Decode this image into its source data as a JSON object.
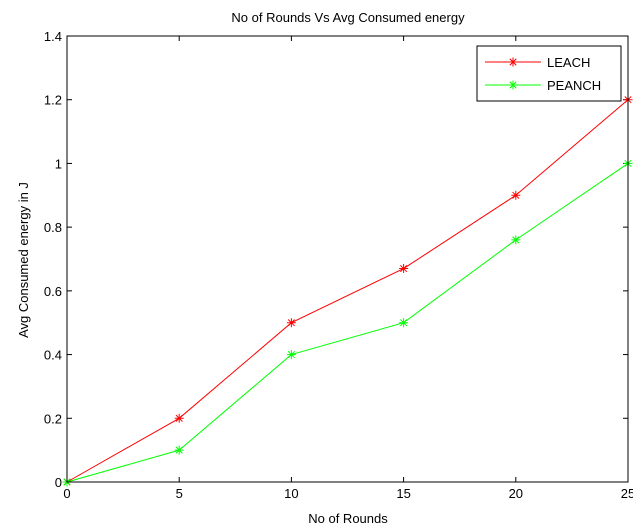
{
  "chart_data": {
    "type": "line",
    "title": "No of Rounds  Vs Avg Consumed energy",
    "xlabel": "No of Rounds",
    "ylabel": "Avg Consumed energy in J",
    "x": [
      0,
      5,
      10,
      15,
      20,
      25
    ],
    "xlim": [
      0,
      25
    ],
    "ylim": [
      0,
      1.4
    ],
    "xticks": [
      0,
      5,
      10,
      15,
      20,
      25
    ],
    "xtick_labels": [
      "0",
      "5",
      "10",
      "15",
      "20",
      "25"
    ],
    "yticks": [
      0,
      0.2,
      0.4,
      0.6,
      0.8,
      1,
      1.2,
      1.4
    ],
    "ytick_labels": [
      "0",
      "0.2",
      "0.4",
      "0.6",
      "0.8",
      "1",
      "1.2",
      "1.4"
    ],
    "grid": false,
    "legend_position": "top-right",
    "marker": "*",
    "series": [
      {
        "name": "LEACH",
        "color": "#ff0000",
        "values": [
          0,
          0.2,
          0.5,
          0.67,
          0.9,
          1.2
        ]
      },
      {
        "name": "PEANCH",
        "color": "#00ff00",
        "values": [
          0,
          0.1,
          0.4,
          0.5,
          0.76,
          1.0
        ]
      }
    ]
  }
}
